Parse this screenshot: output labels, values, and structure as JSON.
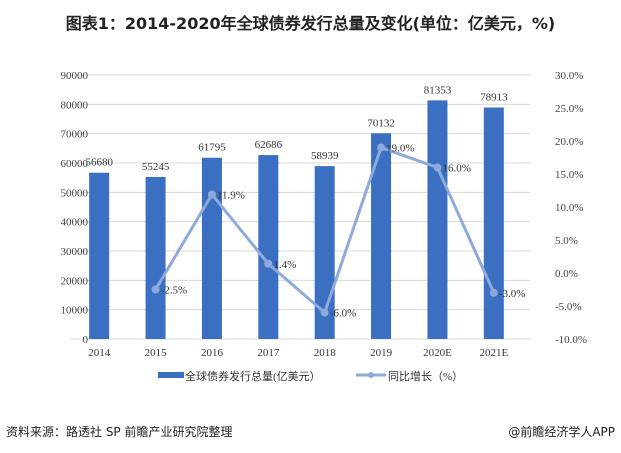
{
  "title": "图表1：2014-2020年全球债券发行总量及变化(单位：亿美元，%)",
  "source": "资料来源：路透社 SP 前瞻产业研究院整理",
  "credit": "@前瞻经济学人APP",
  "colors": {
    "bar": "#3b6fc1",
    "line": "#8eaadc",
    "grid": "#d9d9d9"
  },
  "chart_data": {
    "type": "bar+line",
    "categories": [
      "2014",
      "2015",
      "2016",
      "2017",
      "2018",
      "2019",
      "2020E",
      "2021E"
    ],
    "series": [
      {
        "name": "全球债券发行总量(亿美元）",
        "type": "bar",
        "axis": "left",
        "values": [
          56680,
          55245,
          61795,
          62686,
          58939,
          70132,
          81353,
          78913
        ],
        "labels": [
          "56680",
          "55245",
          "61795",
          "62686",
          "58939",
          "70132",
          "81353",
          "78913"
        ]
      },
      {
        "name": "同比增长（%）",
        "type": "line",
        "axis": "right",
        "values": [
          null,
          -2.5,
          11.9,
          1.4,
          -6.0,
          19.0,
          16.0,
          -3.0
        ],
        "labels": [
          "",
          "-2.5%",
          "11.9%",
          "1.4%",
          "-6.0%",
          "19.0%",
          "16.0%",
          "-3.0%"
        ]
      }
    ],
    "left_axis": {
      "ylim": [
        0,
        90000
      ],
      "ticks": [
        "0",
        "10000",
        "20000",
        "30000",
        "40000",
        "50000",
        "60000",
        "70000",
        "80000",
        "90000"
      ]
    },
    "right_axis": {
      "ylim": [
        -10,
        30
      ],
      "ticks": [
        "-10.0%",
        "-5.0%",
        "0.0%",
        "5.0%",
        "10.0%",
        "15.0%",
        "20.0%",
        "25.0%",
        "30.0%"
      ]
    },
    "grid": "horizontal",
    "legend": "bottom"
  }
}
